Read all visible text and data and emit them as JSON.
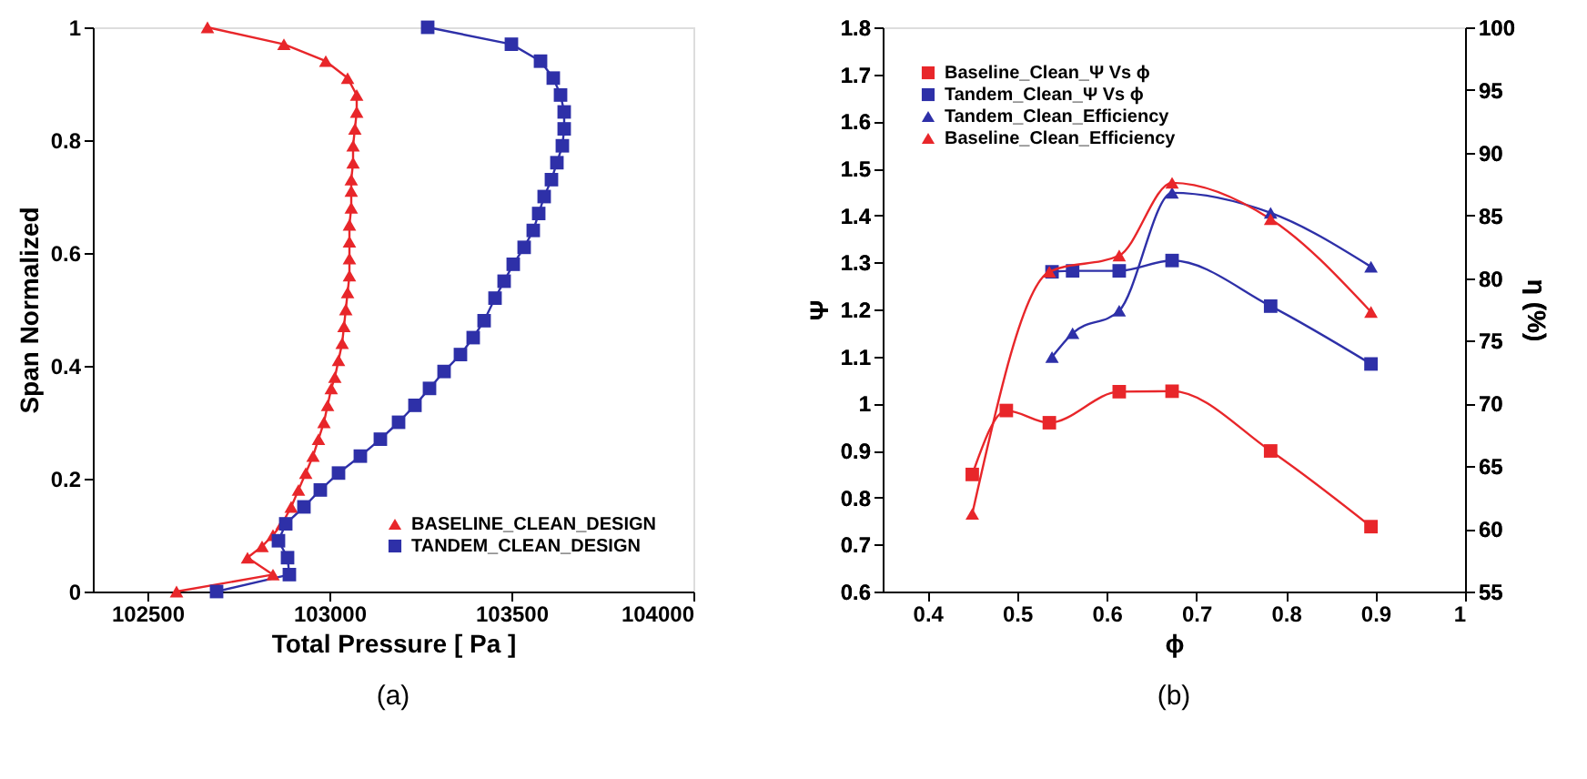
{
  "chart_data": [
    {
      "type": "line",
      "xlabel": "Total Pressure [ Pa ]",
      "ylabel": "Span Normalized",
      "annotations": [
        "(a)"
      ],
      "xlim": [
        102350,
        104000
      ],
      "xticks": [
        102500,
        103000,
        103500,
        104000
      ],
      "ylim": [
        0,
        1
      ],
      "yticks": [
        0,
        0.2,
        0.4,
        0.6,
        0.8,
        1
      ],
      "grid": false,
      "legend": "bottom right",
      "series": [
        {
          "name": "BASELINE_CLEAN_DESIGN",
          "color": "#e8262a",
          "marker": "triangle",
          "x": [
            102665,
            102875,
            102990,
            103050,
            103075,
            103075,
            103070,
            103065,
            103065,
            103060,
            103060,
            103060,
            103055,
            103055,
            103055,
            103055,
            103050,
            103045,
            103040,
            103035,
            103025,
            103015,
            103005,
            102995,
            102985,
            102970,
            102955,
            102935,
            102915,
            102895,
            102870,
            102845,
            102815,
            102775,
            102845,
            102580
          ],
          "values": [
            1.0,
            0.97,
            0.94,
            0.91,
            0.88,
            0.85,
            0.82,
            0.79,
            0.76,
            0.73,
            0.71,
            0.68,
            0.65,
            0.62,
            0.59,
            0.56,
            0.53,
            0.5,
            0.47,
            0.44,
            0.41,
            0.38,
            0.36,
            0.33,
            0.3,
            0.27,
            0.24,
            0.21,
            0.18,
            0.15,
            0.12,
            0.1,
            0.08,
            0.06,
            0.03,
            0.0
          ]
        },
        {
          "name": "TANDEM_CLEAN_DESIGN",
          "color": "#2e30a8",
          "marker": "square",
          "x": [
            103270,
            103500,
            103580,
            103615,
            103635,
            103645,
            103645,
            103640,
            103625,
            103610,
            103590,
            103575,
            103560,
            103535,
            103505,
            103480,
            103455,
            103425,
            103395,
            103360,
            103315,
            103275,
            103235,
            103190,
            103140,
            103085,
            103025,
            102975,
            102930,
            102880,
            102860,
            102885,
            102890,
            102690
          ],
          "values": [
            1.0,
            0.97,
            0.94,
            0.91,
            0.88,
            0.85,
            0.82,
            0.79,
            0.76,
            0.73,
            0.7,
            0.67,
            0.64,
            0.61,
            0.58,
            0.55,
            0.52,
            0.48,
            0.45,
            0.42,
            0.39,
            0.36,
            0.33,
            0.3,
            0.27,
            0.24,
            0.21,
            0.18,
            0.15,
            0.12,
            0.09,
            0.06,
            0.03,
            0.0
          ]
        }
      ]
    },
    {
      "type": "line",
      "xlabel": "ϕ",
      "ylabel": "Ψ",
      "y2label": "η (%)",
      "annotations": [
        "(b)"
      ],
      "xlim": [
        0.35,
        1.0
      ],
      "xticks": [
        0.4,
        0.5,
        0.6,
        0.7,
        0.8,
        0.9,
        1
      ],
      "ylim": [
        0.6,
        1.8
      ],
      "yticks": [
        0.6,
        0.7,
        0.8,
        0.9,
        1,
        1.1,
        1.2,
        1.3,
        1.4,
        1.5,
        1.6,
        1.7,
        1.8
      ],
      "y2lim": [
        55,
        100
      ],
      "y2ticks": [
        55,
        60,
        65,
        70,
        75,
        80,
        85,
        90,
        95,
        100
      ],
      "grid": false,
      "legend": "top left",
      "series": [
        {
          "name": "Baseline_Clean_Ψ Vs ϕ",
          "color": "#e8262a",
          "marker": "square",
          "x": [
            0.45,
            0.488,
            0.536,
            0.614,
            0.673,
            0.783,
            0.895
          ],
          "values": [
            0.849,
            0.985,
            0.959,
            1.025,
            1.026,
            0.899,
            0.738
          ]
        },
        {
          "name": "Tandem_Clean_Ψ Vs ϕ",
          "color": "#2e30a8",
          "marker": "square",
          "x": [
            0.539,
            0.562,
            0.614,
            0.673,
            0.783,
            0.895
          ],
          "values": [
            1.28,
            1.282,
            1.282,
            1.304,
            1.207,
            1.084
          ]
        },
        {
          "name": "Tandem_Clean_Efficiency",
          "color": "#2e30a8",
          "marker": "triangle",
          "axis": "y2",
          "x": [
            0.539,
            0.562,
            0.614,
            0.673,
            0.783,
            0.895
          ],
          "values": [
            73.7,
            75.6,
            77.4,
            86.8,
            85.2,
            80.9
          ]
        },
        {
          "name": "Baseline_Clean_Efficiency",
          "color": "#e8262a",
          "marker": "triangle",
          "axis": "y2",
          "x": [
            0.45,
            0.536,
            0.614,
            0.673,
            0.783,
            0.895
          ],
          "values": [
            61.2,
            80.5,
            81.8,
            87.6,
            84.7,
            77.3
          ]
        }
      ]
    }
  ]
}
